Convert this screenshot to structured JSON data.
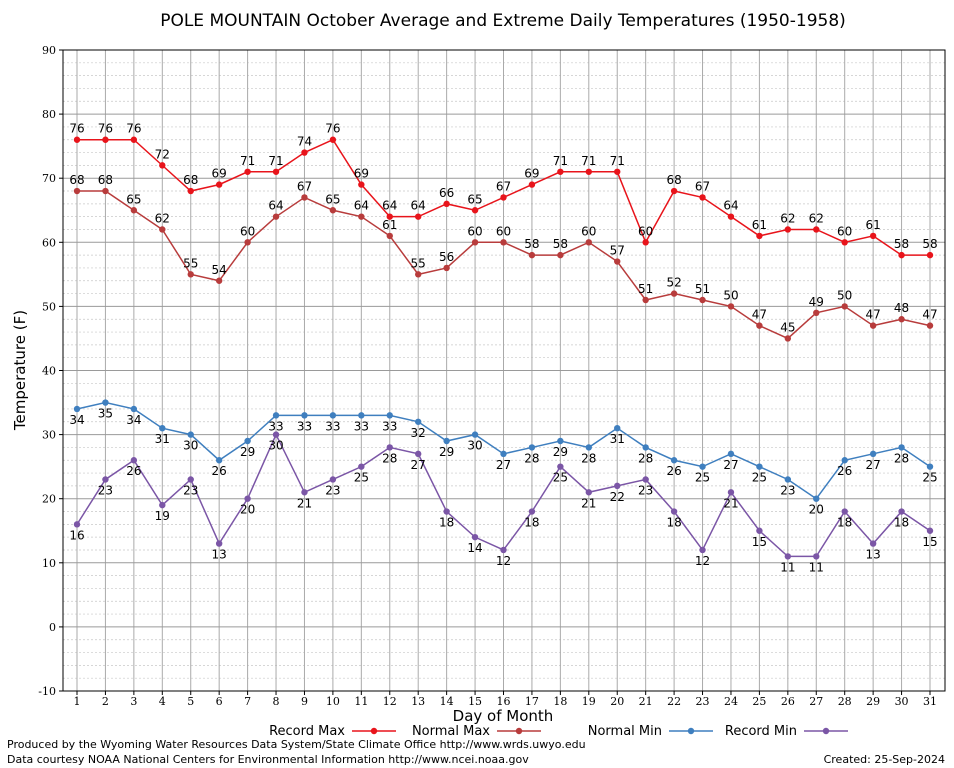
{
  "chart_data": {
    "type": "line",
    "title": "POLE MOUNTAIN October Average and Extreme Daily Temperatures (1950-1958)",
    "xlabel": "Day of Month",
    "ylabel": "Temperature (F)",
    "xlim": [
      1,
      31
    ],
    "ylim": [
      -10,
      90
    ],
    "y_major_step": 10,
    "y_minor_step": 2,
    "grid": true,
    "legend_position": "bottom",
    "x": [
      1,
      2,
      3,
      4,
      5,
      6,
      7,
      8,
      9,
      10,
      11,
      12,
      13,
      14,
      15,
      16,
      17,
      18,
      19,
      20,
      21,
      22,
      23,
      24,
      25,
      26,
      27,
      28,
      29,
      30,
      31
    ],
    "series": [
      {
        "name": "Record Max",
        "color": "#e8141b",
        "label_position": "above",
        "values": [
          76,
          76,
          76,
          72,
          68,
          69,
          71,
          71,
          74,
          76,
          69,
          64,
          64,
          66,
          65,
          67,
          69,
          71,
          71,
          71,
          60,
          68,
          67,
          64,
          61,
          62,
          62,
          60,
          61,
          58,
          58
        ]
      },
      {
        "name": "Normal Max",
        "color": "#b83c3c",
        "label_position": "above",
        "values": [
          68,
          68,
          65,
          62,
          55,
          54,
          60,
          64,
          67,
          65,
          64,
          61,
          55,
          56,
          60,
          60,
          58,
          58,
          60,
          57,
          51,
          52,
          51,
          50,
          47,
          45,
          49,
          50,
          47,
          48,
          47
        ]
      },
      {
        "name": "Normal Min",
        "color": "#3f7fbf",
        "label_position": "below",
        "values": [
          34,
          35,
          34,
          31,
          30,
          26,
          29,
          33,
          33,
          33,
          33,
          33,
          32,
          29,
          30,
          27,
          28,
          29,
          28,
          31,
          28,
          26,
          25,
          27,
          25,
          23,
          20,
          26,
          27,
          28,
          25
        ]
      },
      {
        "name": "Record Min",
        "color": "#7b56a6",
        "label_position": "below",
        "values": [
          16,
          23,
          26,
          19,
          23,
          13,
          20,
          30,
          21,
          23,
          25,
          28,
          27,
          18,
          14,
          12,
          18,
          25,
          21,
          22,
          23,
          18,
          12,
          21,
          15,
          11,
          11,
          18,
          13,
          18,
          15
        ]
      }
    ]
  },
  "footer": {
    "left_line1": "Produced by the Wyoming Water Resources Data System/State Climate Office http://www.wrds.uwyo.edu",
    "left_line2": "Data courtesy NOAA National Centers for Environmental Information http://www.ncei.noaa.gov",
    "created": "Created: 25-Sep-2024"
  }
}
